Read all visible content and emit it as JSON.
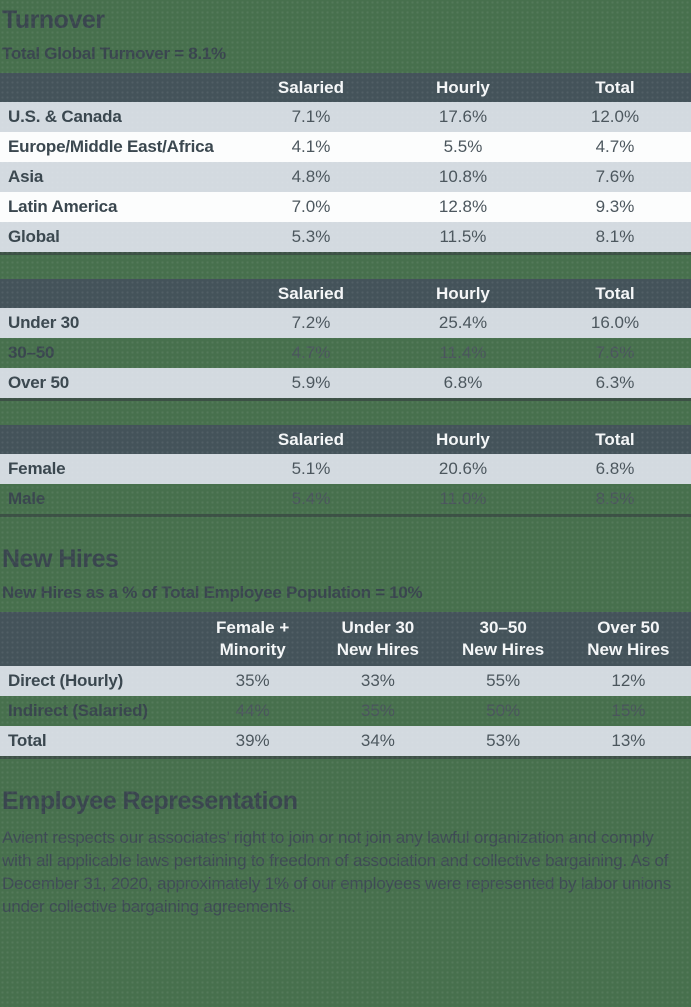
{
  "colors": {
    "page_bg": "#47704d",
    "table_header_bg": "#44535a",
    "row_gray": "#d3dae0",
    "row_white": "#fcfdfd",
    "header_text": "#f4f6f7",
    "title_text": "#39454e",
    "value_text": "#4a555c",
    "table_bottom_border": "#3c5145"
  },
  "turnover": {
    "title": "Turnover",
    "subtitle": "Total Global Turnover = 8.1%",
    "region_table": {
      "columns": [
        "Salaried",
        "Hourly",
        "Total"
      ],
      "rows": [
        {
          "label": "U.S. & Canada",
          "values": [
            "7.1%",
            "17.6%",
            "12.0%"
          ]
        },
        {
          "label": "Europe/Middle East/Africa",
          "values": [
            "4.1%",
            "5.5%",
            "4.7%"
          ]
        },
        {
          "label": "Asia",
          "values": [
            "4.8%",
            "10.8%",
            "7.6%"
          ]
        },
        {
          "label": "Latin America",
          "values": [
            "7.0%",
            "12.8%",
            "9.3%"
          ]
        },
        {
          "label": "Global",
          "values": [
            "5.3%",
            "11.5%",
            "8.1%"
          ]
        }
      ]
    },
    "age_table": {
      "columns": [
        "Salaried",
        "Hourly",
        "Total"
      ],
      "rows": [
        {
          "label": "Under 30",
          "values": [
            "7.2%",
            "25.4%",
            "16.0%"
          ]
        },
        {
          "label": "30–50",
          "values": [
            "4.7%",
            "11.4%",
            "7.6%"
          ]
        },
        {
          "label": "Over 50",
          "values": [
            "5.9%",
            "6.8%",
            "6.3%"
          ]
        }
      ]
    },
    "gender_table": {
      "columns": [
        "Salaried",
        "Hourly",
        "Total"
      ],
      "rows": [
        {
          "label": "Female",
          "values": [
            "5.1%",
            "20.6%",
            "6.8%"
          ]
        },
        {
          "label": "Male",
          "values": [
            "5.4%",
            "11.0%",
            "8.5%"
          ]
        }
      ]
    }
  },
  "new_hires": {
    "title": "New Hires",
    "subtitle": "New Hires as a % of Total Employee Population = 10%",
    "table": {
      "columns": [
        "Female +\nMinority",
        "Under 30\nNew Hires",
        "30–50\nNew Hires",
        "Over 50\nNew Hires"
      ],
      "rows": [
        {
          "label": "Direct (Hourly)",
          "values": [
            "35%",
            "33%",
            "55%",
            "12%"
          ]
        },
        {
          "label": "Indirect (Salaried)",
          "values": [
            "44%",
            "35%",
            "50%",
            "15%"
          ]
        },
        {
          "label": "Total",
          "values": [
            "39%",
            "34%",
            "53%",
            "13%"
          ]
        }
      ]
    }
  },
  "employee_representation": {
    "title": "Employee Representation",
    "body": "Avient respects our associates’ right to join or not join any lawful organization and comply with all applicable laws pertaining to freedom of association and collective bargaining. As of December 31, 2020, approximately 1% of our employees were represented by labor unions under collective bargaining agreements."
  }
}
